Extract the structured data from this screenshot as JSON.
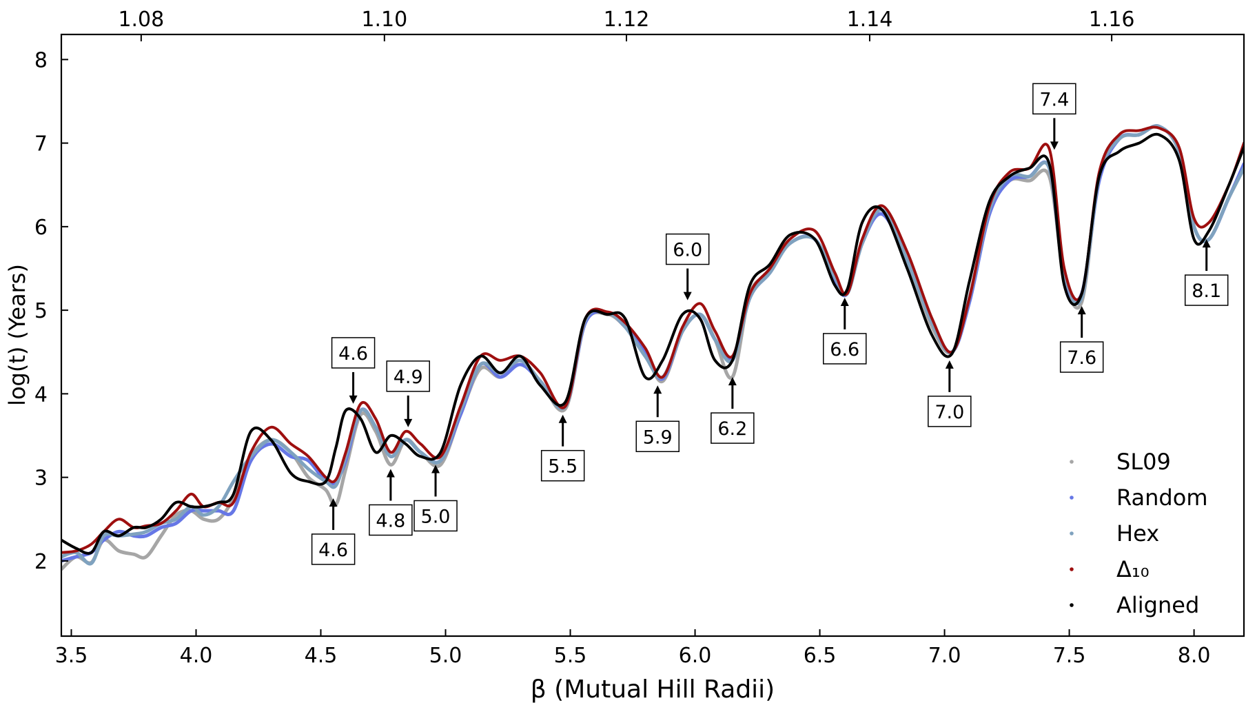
{
  "chart_data": {
    "type": "line",
    "title": "",
    "xlabel": "β (Mutual Hill Radii)",
    "ylabel": "log(t) (Years)",
    "xlim": [
      3.46,
      8.2
    ],
    "ylim": [
      1.1,
      8.3
    ],
    "x_ticks": [
      3.5,
      4.0,
      4.5,
      5.0,
      5.5,
      6.0,
      6.5,
      7.0,
      7.5,
      8.0
    ],
    "x_tick_labels": [
      "3.5",
      "4.0",
      "4.5",
      "5.0",
      "5.5",
      "6.0",
      "6.5",
      "7.0",
      "7.5",
      "8.0"
    ],
    "y_ticks": [
      2,
      3,
      4,
      5,
      6,
      7,
      8
    ],
    "y_tick_labels": [
      "2",
      "3",
      "4",
      "5",
      "6",
      "7",
      "8"
    ],
    "top_axis": {
      "ticks": [
        1.08,
        1.1,
        1.12,
        1.14,
        1.16
      ],
      "tick_labels": [
        "1.08",
        "1.10",
        "1.12",
        "1.14",
        "1.16"
      ],
      "tick_positions_beta": [
        3.78,
        4.755,
        5.725,
        6.7,
        7.67
      ]
    },
    "grid": false,
    "legend_position": "bottom-right",
    "series": [
      {
        "name": "SL09",
        "color": "#a6a6a6",
        "x": [
          3.46,
          3.52,
          3.58,
          3.63,
          3.69,
          3.75,
          3.8,
          3.86,
          3.92,
          3.98,
          4.03,
          4.09,
          4.15,
          4.22,
          4.3,
          4.38,
          4.45,
          4.52,
          4.56,
          4.6,
          4.66,
          4.72,
          4.78,
          4.84,
          4.9,
          4.98,
          5.06,
          5.14,
          5.22,
          5.3,
          5.38,
          5.48,
          5.56,
          5.65,
          5.72,
          5.8,
          5.87,
          5.95,
          6.02,
          6.08,
          6.15,
          6.22,
          6.3,
          6.38,
          6.48,
          6.56,
          6.61,
          6.67,
          6.75,
          6.85,
          6.95,
          7.03,
          7.1,
          7.18,
          7.26,
          7.34,
          7.42,
          7.48,
          7.55,
          7.62,
          7.7,
          7.78,
          7.86,
          7.94,
          8.0,
          8.06,
          8.14,
          8.2
        ],
        "y": [
          1.9,
          2.05,
          1.98,
          2.25,
          2.12,
          2.08,
          2.05,
          2.3,
          2.55,
          2.6,
          2.5,
          2.5,
          2.75,
          3.25,
          3.45,
          3.3,
          3.0,
          2.85,
          2.67,
          3.1,
          3.75,
          3.55,
          3.15,
          3.45,
          3.3,
          3.15,
          3.75,
          4.3,
          4.2,
          4.4,
          4.15,
          3.82,
          4.85,
          4.95,
          4.8,
          4.5,
          4.15,
          4.75,
          4.95,
          4.65,
          4.2,
          5.2,
          5.45,
          5.8,
          5.85,
          5.35,
          5.2,
          5.8,
          6.2,
          5.6,
          4.8,
          4.5,
          5.15,
          6.2,
          6.55,
          6.55,
          6.6,
          5.4,
          5.1,
          6.6,
          7.05,
          7.1,
          7.2,
          6.9,
          6.0,
          5.85,
          6.35,
          6.7
        ]
      },
      {
        "name": "Random",
        "color": "#6677e6",
        "x": [
          3.46,
          3.52,
          3.58,
          3.63,
          3.69,
          3.75,
          3.8,
          3.86,
          3.92,
          3.98,
          4.03,
          4.09,
          4.15,
          4.22,
          4.3,
          4.38,
          4.45,
          4.52,
          4.56,
          4.6,
          4.66,
          4.72,
          4.78,
          4.84,
          4.9,
          4.98,
          5.06,
          5.14,
          5.22,
          5.3,
          5.38,
          5.48,
          5.56,
          5.65,
          5.72,
          5.8,
          5.87,
          5.95,
          6.02,
          6.08,
          6.15,
          6.22,
          6.3,
          6.38,
          6.48,
          6.56,
          6.61,
          6.67,
          6.75,
          6.85,
          6.95,
          7.03,
          7.1,
          7.18,
          7.26,
          7.34,
          7.42,
          7.48,
          7.55,
          7.62,
          7.7,
          7.78,
          7.86,
          7.94,
          8.0,
          8.06,
          8.14,
          8.2
        ],
        "y": [
          2.0,
          2.05,
          2.1,
          2.25,
          2.35,
          2.3,
          2.3,
          2.4,
          2.45,
          2.6,
          2.6,
          2.6,
          2.6,
          3.2,
          3.4,
          3.25,
          3.2,
          2.95,
          2.95,
          3.2,
          3.8,
          3.6,
          3.25,
          3.45,
          3.3,
          3.2,
          3.75,
          4.35,
          4.2,
          4.35,
          4.15,
          3.85,
          4.85,
          4.97,
          4.8,
          4.5,
          4.18,
          4.75,
          4.95,
          4.65,
          4.42,
          5.15,
          5.45,
          5.8,
          5.85,
          5.35,
          5.2,
          5.8,
          6.15,
          5.6,
          4.85,
          4.5,
          5.1,
          6.15,
          6.55,
          6.6,
          6.7,
          5.4,
          5.2,
          6.55,
          7.05,
          7.1,
          7.2,
          6.9,
          6.0,
          5.85,
          6.35,
          6.75
        ]
      },
      {
        "name": "Hex",
        "color": "#7fa2bf",
        "x": [
          3.46,
          3.52,
          3.58,
          3.63,
          3.69,
          3.75,
          3.8,
          3.86,
          3.92,
          3.98,
          4.03,
          4.09,
          4.15,
          4.22,
          4.3,
          4.38,
          4.45,
          4.52,
          4.56,
          4.6,
          4.66,
          4.72,
          4.78,
          4.84,
          4.9,
          4.98,
          5.06,
          5.14,
          5.22,
          5.3,
          5.38,
          5.48,
          5.56,
          5.65,
          5.72,
          5.8,
          5.87,
          5.95,
          6.02,
          6.08,
          6.15,
          6.22,
          6.3,
          6.38,
          6.48,
          6.56,
          6.61,
          6.67,
          6.75,
          6.85,
          6.95,
          7.03,
          7.1,
          7.18,
          7.26,
          7.34,
          7.42,
          7.48,
          7.55,
          7.62,
          7.7,
          7.78,
          7.86,
          7.94,
          8.0,
          8.06,
          8.14,
          8.2
        ],
        "y": [
          2.05,
          2.1,
          1.97,
          2.3,
          2.3,
          2.32,
          2.35,
          2.45,
          2.5,
          2.65,
          2.55,
          2.65,
          2.95,
          3.25,
          3.45,
          3.3,
          3.1,
          2.95,
          2.9,
          3.25,
          3.8,
          3.6,
          3.25,
          3.45,
          3.3,
          3.2,
          3.8,
          4.35,
          4.25,
          4.4,
          4.15,
          3.85,
          4.88,
          4.97,
          4.8,
          4.45,
          4.2,
          4.75,
          4.95,
          4.65,
          4.4,
          5.15,
          5.45,
          5.8,
          5.85,
          5.4,
          5.2,
          5.8,
          6.2,
          5.6,
          4.85,
          4.5,
          5.15,
          6.2,
          6.6,
          6.6,
          6.7,
          5.45,
          5.15,
          6.6,
          7.05,
          7.1,
          7.2,
          6.9,
          6.0,
          5.85,
          6.35,
          6.7
        ]
      },
      {
        "name": "Δ₁₀",
        "color": "#9e0f0f",
        "x": [
          3.46,
          3.52,
          3.58,
          3.63,
          3.69,
          3.75,
          3.8,
          3.86,
          3.92,
          3.98,
          4.03,
          4.09,
          4.15,
          4.22,
          4.3,
          4.38,
          4.45,
          4.52,
          4.56,
          4.6,
          4.66,
          4.72,
          4.78,
          4.84,
          4.9,
          4.98,
          5.06,
          5.14,
          5.22,
          5.3,
          5.38,
          5.48,
          5.56,
          5.65,
          5.72,
          5.8,
          5.87,
          5.95,
          6.02,
          6.08,
          6.15,
          6.22,
          6.3,
          6.38,
          6.48,
          6.56,
          6.61,
          6.67,
          6.75,
          6.85,
          6.95,
          7.03,
          7.1,
          7.18,
          7.26,
          7.34,
          7.42,
          7.48,
          7.55,
          7.62,
          7.7,
          7.78,
          7.86,
          7.94,
          8.0,
          8.06,
          8.14,
          8.2
        ],
        "y": [
          2.1,
          2.12,
          2.2,
          2.35,
          2.5,
          2.4,
          2.42,
          2.45,
          2.6,
          2.8,
          2.65,
          2.7,
          2.7,
          3.3,
          3.6,
          3.4,
          3.25,
          3.0,
          2.97,
          3.3,
          3.88,
          3.7,
          3.3,
          3.55,
          3.4,
          3.25,
          3.85,
          4.45,
          4.4,
          4.45,
          4.25,
          3.85,
          4.9,
          4.98,
          4.85,
          4.55,
          4.2,
          4.8,
          5.08,
          4.75,
          4.45,
          5.2,
          5.5,
          5.85,
          5.95,
          5.45,
          5.2,
          5.85,
          6.25,
          5.7,
          4.9,
          4.5,
          5.15,
          6.25,
          6.65,
          6.7,
          6.93,
          5.5,
          5.2,
          6.65,
          7.1,
          7.15,
          7.18,
          6.95,
          6.1,
          6.05,
          6.5,
          7.0
        ]
      },
      {
        "name": "Aligned",
        "color": "#000000",
        "x": [
          3.46,
          3.52,
          3.58,
          3.63,
          3.69,
          3.75,
          3.8,
          3.86,
          3.92,
          3.98,
          4.03,
          4.09,
          4.15,
          4.22,
          4.3,
          4.38,
          4.45,
          4.52,
          4.56,
          4.6,
          4.66,
          4.72,
          4.78,
          4.84,
          4.9,
          4.98,
          5.06,
          5.14,
          5.22,
          5.3,
          5.38,
          5.48,
          5.56,
          5.65,
          5.72,
          5.8,
          5.87,
          5.95,
          6.02,
          6.08,
          6.15,
          6.22,
          6.3,
          6.38,
          6.48,
          6.56,
          6.61,
          6.67,
          6.75,
          6.85,
          6.95,
          7.03,
          7.1,
          7.18,
          7.26,
          7.34,
          7.42,
          7.48,
          7.55,
          7.62,
          7.7,
          7.78,
          7.86,
          7.94,
          8.0,
          8.06,
          8.14,
          8.2
        ],
        "y": [
          2.25,
          2.15,
          2.1,
          2.35,
          2.3,
          2.4,
          2.4,
          2.5,
          2.7,
          2.65,
          2.65,
          2.7,
          2.8,
          3.55,
          3.45,
          3.05,
          2.95,
          2.95,
          3.35,
          3.8,
          3.7,
          3.3,
          3.5,
          3.4,
          3.25,
          3.3,
          4.1,
          4.45,
          4.25,
          4.45,
          4.1,
          3.9,
          4.9,
          4.95,
          4.9,
          4.2,
          4.4,
          4.95,
          4.9,
          4.4,
          4.4,
          5.3,
          5.55,
          5.9,
          5.85,
          5.3,
          5.25,
          6.05,
          6.2,
          5.5,
          4.7,
          4.48,
          5.35,
          6.3,
          6.6,
          6.7,
          6.75,
          5.3,
          5.2,
          6.6,
          6.9,
          7.0,
          7.1,
          6.8,
          5.85,
          5.95,
          6.5,
          6.95
        ]
      }
    ],
    "annotations": [
      {
        "label": "4.6",
        "x": 4.55,
        "y": 2.75,
        "direction": "up"
      },
      {
        "label": "4.6",
        "x": 4.63,
        "y": 3.88,
        "direction": "down"
      },
      {
        "label": "4.8",
        "x": 4.78,
        "y": 3.1,
        "direction": "up"
      },
      {
        "label": "4.9",
        "x": 4.85,
        "y": 3.6,
        "direction": "down"
      },
      {
        "label": "5.0",
        "x": 4.96,
        "y": 3.15,
        "direction": "up"
      },
      {
        "label": "5.5",
        "x": 5.47,
        "y": 3.75,
        "direction": "up"
      },
      {
        "label": "5.9",
        "x": 5.85,
        "y": 4.1,
        "direction": "up"
      },
      {
        "label": "6.0",
        "x": 5.97,
        "y": 5.12,
        "direction": "down"
      },
      {
        "label": "6.2",
        "x": 6.15,
        "y": 4.2,
        "direction": "up"
      },
      {
        "label": "6.6",
        "x": 6.6,
        "y": 5.15,
        "direction": "up"
      },
      {
        "label": "7.0",
        "x": 7.02,
        "y": 4.4,
        "direction": "up"
      },
      {
        "label": "7.4",
        "x": 7.44,
        "y": 6.92,
        "direction": "down"
      },
      {
        "label": "7.6",
        "x": 7.55,
        "y": 5.05,
        "direction": "up"
      },
      {
        "label": "8.1",
        "x": 8.05,
        "y": 5.85,
        "direction": "up"
      }
    ]
  }
}
